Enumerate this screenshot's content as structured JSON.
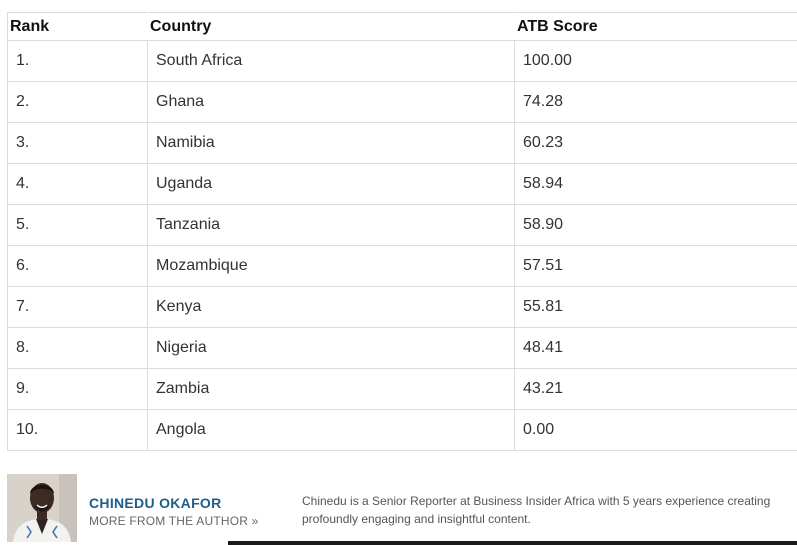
{
  "table": {
    "headers": {
      "rank": "Rank",
      "country": "Country",
      "score": "ATB Score"
    },
    "rows": [
      {
        "rank": "1.",
        "country": "South Africa",
        "score": "100.00"
      },
      {
        "rank": "2.",
        "country": "Ghana",
        "score": "74.28"
      },
      {
        "rank": "3.",
        "country": "Namibia",
        "score": "60.23"
      },
      {
        "rank": "4.",
        "country": "Uganda",
        "score": "58.94"
      },
      {
        "rank": "5.",
        "country": "Tanzania",
        "score": "58.90"
      },
      {
        "rank": "6.",
        "country": "Mozambique",
        "score": "57.51"
      },
      {
        "rank": "7.",
        "country": "Kenya",
        "score": "55.81"
      },
      {
        "rank": "8.",
        "country": "Nigeria",
        "score": "48.41"
      },
      {
        "rank": "9.",
        "country": "Zambia",
        "score": "43.21"
      },
      {
        "rank": "10.",
        "country": "Angola",
        "score": "0.00"
      }
    ]
  },
  "author": {
    "name": "CHINEDU OKAFOR",
    "more_link": "MORE FROM THE AUTHOR »",
    "bio": "Chinedu is a Senior Reporter at Business Insider Africa with 5 years experience creating profoundly engaging and insightful content."
  }
}
